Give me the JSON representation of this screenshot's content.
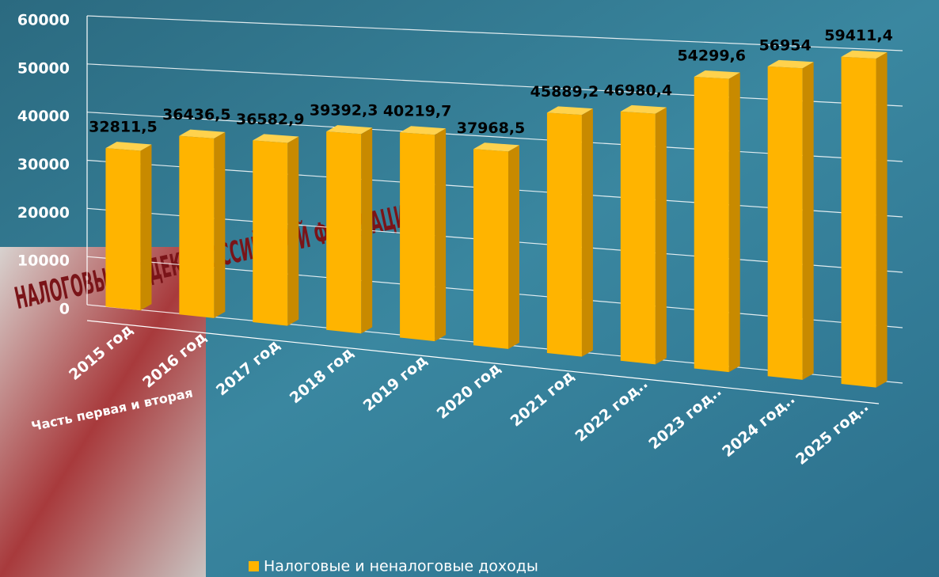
{
  "chart_data": {
    "type": "bar3d",
    "categories": [
      "2015 год",
      "2016 год",
      "2017 год",
      "2018 год",
      "2019 год",
      "2020 год",
      "2021 год",
      "2022 год..",
      "2023 год..",
      "2024 год..",
      "2025 год.."
    ],
    "series": [
      {
        "name": "Налоговые и неналоговые доходы",
        "color": "#ffb400",
        "values": [
          32811.5,
          36436.5,
          36582.9,
          39392.3,
          40219.7,
          37968.5,
          45889.2,
          46980.4,
          54299.6,
          56954,
          59411.4
        ],
        "value_labels": [
          "32811,5",
          "36436,5",
          "36582,9",
          "39392,3",
          "40219,7",
          "37968,5",
          "45889,2",
          "46980,4",
          "54299,6",
          "56954",
          "59411,4"
        ]
      }
    ],
    "ylim": [
      0,
      60000
    ],
    "yticks": [
      0,
      10000,
      20000,
      30000,
      40000,
      50000,
      60000
    ],
    "grid": true
  },
  "image_text": {
    "book_title": "НАЛОГОВЫЙ КОДЕКС РОССИЙСКОЙ ФЕДЕРАЦИИ",
    "book_subtitle": "Часть первая и вторая"
  }
}
